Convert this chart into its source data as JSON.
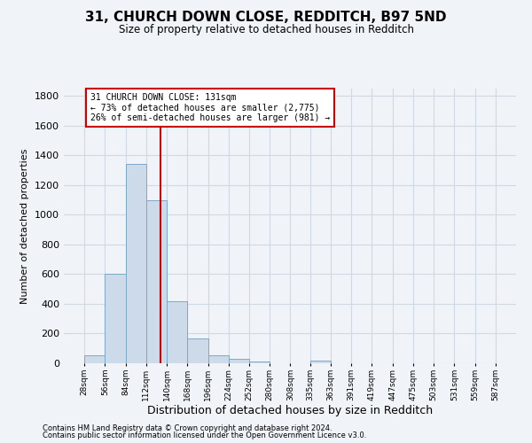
{
  "title": "31, CHURCH DOWN CLOSE, REDDITCH, B97 5ND",
  "subtitle": "Size of property relative to detached houses in Redditch",
  "xlabel": "Distribution of detached houses by size in Redditch",
  "ylabel": "Number of detached properties",
  "footnote1": "Contains HM Land Registry data © Crown copyright and database right 2024.",
  "footnote2": "Contains public sector information licensed under the Open Government Licence v3.0.",
  "bar_color": "#ccdaea",
  "bar_edge_color": "#7aaac8",
  "grid_color": "#d0d8e4",
  "vline_color": "#cc0000",
  "vline_x": 131,
  "annotation_text": "31 CHURCH DOWN CLOSE: 131sqm\n← 73% of detached houses are smaller (2,775)\n26% of semi-detached houses are larger (981) →",
  "annotation_box_color": "#ffffff",
  "annotation_box_edge": "#cc0000",
  "bin_edges": [
    28,
    56,
    84,
    112,
    140,
    168,
    196,
    224,
    252,
    280,
    308,
    335,
    363,
    391,
    419,
    447,
    475,
    503,
    531,
    559,
    587
  ],
  "bar_heights": [
    55,
    600,
    1345,
    1100,
    420,
    170,
    55,
    30,
    10,
    0,
    0,
    15,
    0,
    0,
    0,
    0,
    0,
    0,
    0,
    0
  ],
  "ylim": [
    0,
    1850
  ],
  "yticks": [
    0,
    200,
    400,
    600,
    800,
    1000,
    1200,
    1400,
    1600,
    1800
  ],
  "background_color": "#f0f4f8"
}
